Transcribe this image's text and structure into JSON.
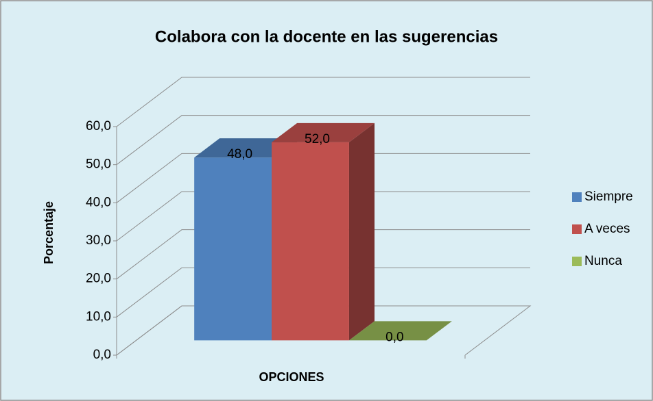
{
  "chart_data": {
    "type": "bar3d",
    "title": "Colabora con la docente en las sugerencias",
    "xlabel": "OPCIONES",
    "ylabel": "Porcentaje",
    "categories": [
      null
    ],
    "series": [
      {
        "name": "Siempre",
        "color": "#4f81bd",
        "values": [
          48
        ],
        "value_labels": [
          "48,0"
        ]
      },
      {
        "name": "A veces",
        "color": "#c0504d",
        "values": [
          52
        ],
        "value_labels": [
          "52,0"
        ]
      },
      {
        "name": "Nunca",
        "color": "#9bbb59",
        "values": [
          0
        ],
        "value_labels": [
          "0,0"
        ]
      }
    ],
    "ylim": [
      0,
      60
    ],
    "yticks": [
      {
        "value": 0,
        "label": "0,0"
      },
      {
        "value": 10,
        "label": "10,0"
      },
      {
        "value": 20,
        "label": "20,0"
      },
      {
        "value": 30,
        "label": "30,0"
      },
      {
        "value": 40,
        "label": "40,0"
      },
      {
        "value": 50,
        "label": "50,0"
      },
      {
        "value": 60,
        "label": "60,0"
      }
    ],
    "grid": true,
    "legend": "right"
  }
}
